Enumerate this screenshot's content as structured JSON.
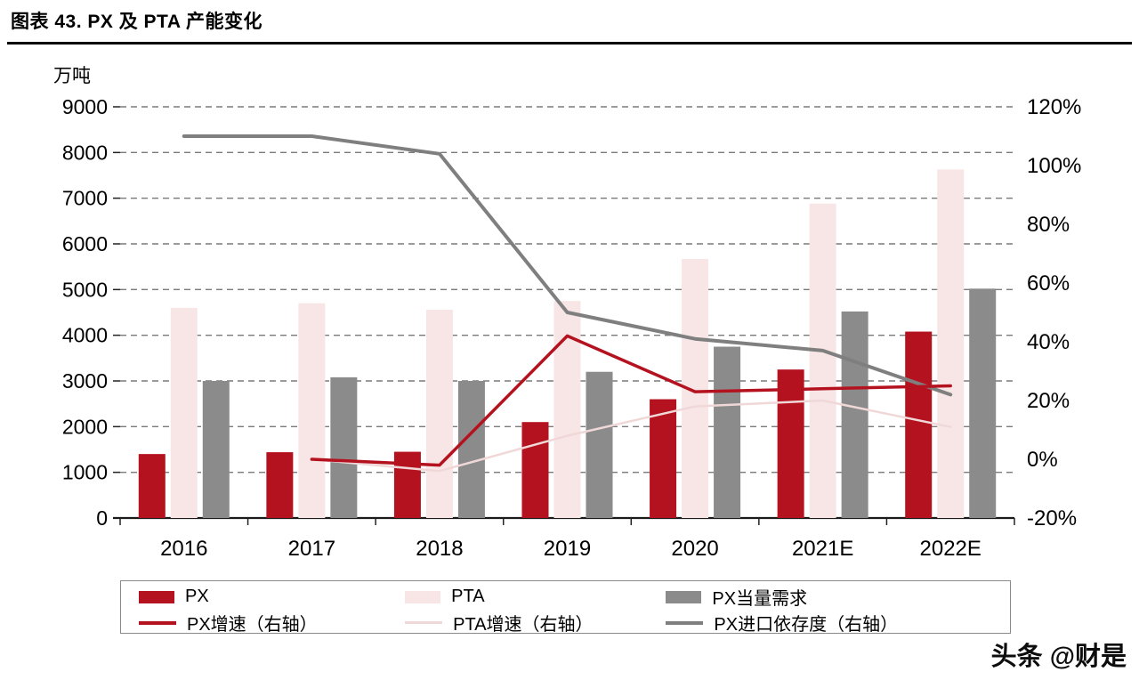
{
  "header": {
    "title": "图表 43. PX 及 PTA 产能变化"
  },
  "watermark": "头条 @财是",
  "chart_data": {
    "type": "bar+line",
    "title": "图表 43. PX 及 PTA 产能变化",
    "categories": [
      "2016",
      "2017",
      "2018",
      "2019",
      "2020",
      "2021E",
      "2022E"
    ],
    "bar_series": [
      {
        "name": "PX",
        "color": "#b5121f",
        "axis": "left",
        "values": [
          1400,
          1440,
          1450,
          2100,
          2600,
          3250,
          4080
        ]
      },
      {
        "name": "PTA",
        "color": "#f8e6e6",
        "axis": "left",
        "values": [
          4600,
          4700,
          4560,
          4750,
          5670,
          6880,
          7630
        ]
      },
      {
        "name": "PX当量需求",
        "color": "#8b8b8b",
        "axis": "left",
        "values": [
          3000,
          3080,
          3000,
          3200,
          3750,
          4520,
          5020
        ]
      }
    ],
    "line_series": [
      {
        "name": "PX增速（右轴）",
        "color": "#b5121f",
        "width": 3.5,
        "axis": "right",
        "values": [
          null,
          0,
          -2,
          42,
          23,
          24,
          25
        ]
      },
      {
        "name": "PTA增速（右轴）",
        "color": "#f0d8d8",
        "width": 2.5,
        "axis": "right",
        "values": [
          null,
          0,
          -4,
          8,
          18,
          20,
          11
        ]
      },
      {
        "name": "PX进口依存度（右轴）",
        "color": "#7f7f7f",
        "width": 4,
        "axis": "right",
        "values": [
          110,
          110,
          104,
          50,
          41,
          37,
          22
        ]
      }
    ],
    "left_axis": {
      "label": "万吨",
      "min": 0,
      "max": 9000,
      "step": 1000,
      "ticks": [
        "0",
        "1000",
        "2000",
        "3000",
        "4000",
        "5000",
        "6000",
        "7000",
        "8000",
        "9000"
      ]
    },
    "right_axis": {
      "min": -20,
      "max": 120,
      "step": 20,
      "ticks": [
        "-20%",
        "0%",
        "20%",
        "40%",
        "60%",
        "80%",
        "100%",
        "120%"
      ]
    },
    "grid": "dashed-horizontal",
    "legend_position": "bottom"
  }
}
